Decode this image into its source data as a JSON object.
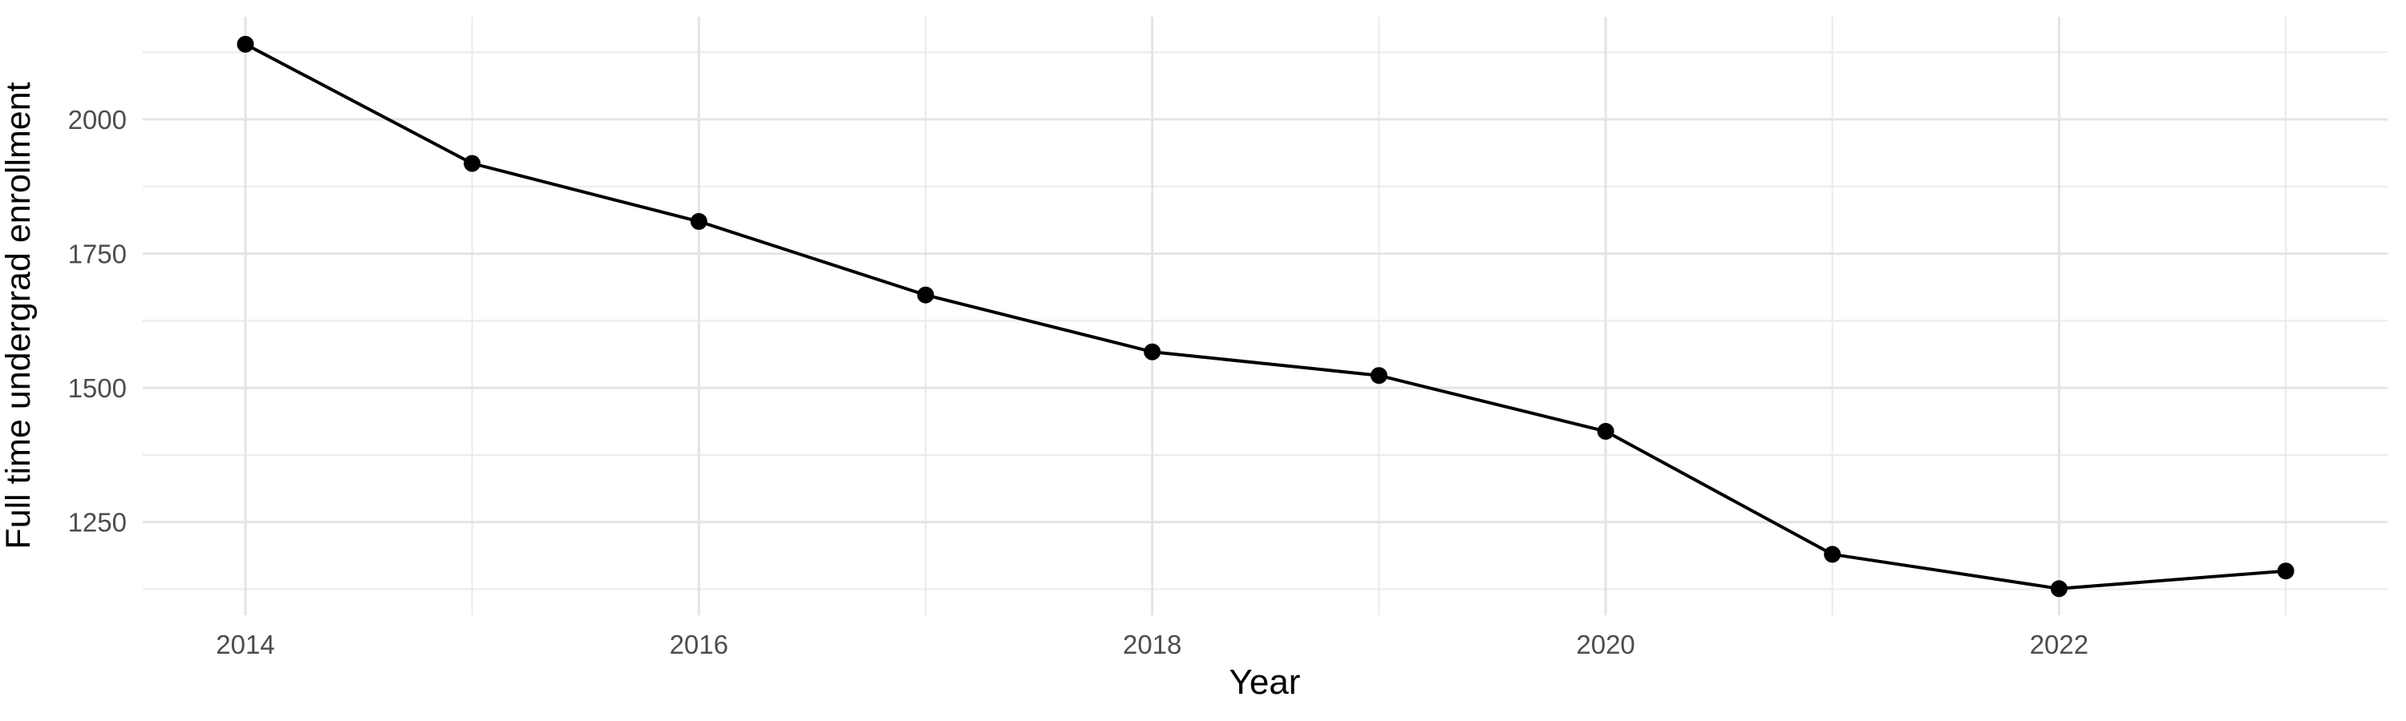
{
  "chart_data": {
    "type": "line",
    "title": "",
    "xlabel": "Year",
    "ylabel": "Full time undergrad enrollment",
    "series": [
      {
        "name": "Full time undergrad enrollment",
        "x": [
          2014,
          2015,
          2016,
          2017,
          2018,
          2019,
          2020,
          2021,
          2022,
          2023
        ],
        "values": [
          2140,
          1918,
          1810,
          1673,
          1567,
          1523,
          1419,
          1190,
          1126,
          1159
        ]
      }
    ],
    "x_major_ticks": [
      2014,
      2016,
      2018,
      2020,
      2022
    ],
    "x_major_tick_labels": [
      "2014",
      "2016",
      "2018",
      "2020",
      "2022"
    ],
    "x_minor_ticks": [
      2015,
      2017,
      2019,
      2021,
      2023
    ],
    "y_major_ticks": [
      2000,
      1750,
      1500,
      1250
    ],
    "y_major_tick_labels": [
      "2000",
      "1750",
      "1500",
      "1250"
    ],
    "y_minor_ticks": [
      2125,
      1875,
      1625,
      1375,
      1125
    ],
    "xlim": [
      2013.547,
      2023.449
    ],
    "ylim": [
      1076.5,
      2191
    ],
    "grid": true,
    "legend_position": "none",
    "colors": {
      "line": "#000000",
      "point": "#000000",
      "grid_major": "#E4E4E4",
      "grid_minor": "#ECECEC",
      "tick_label": "#4D4D4D",
      "axis_title": "#000000",
      "background": "#FFFFFF"
    }
  }
}
